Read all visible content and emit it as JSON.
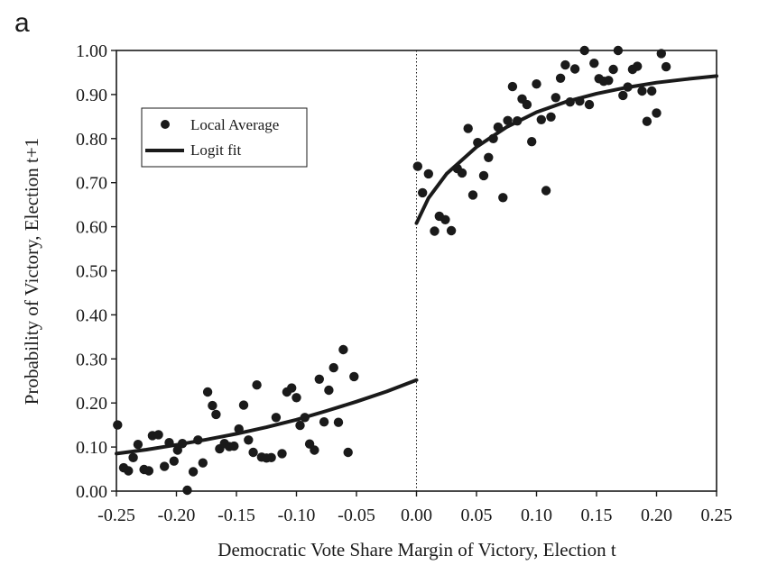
{
  "panel_label": "a",
  "chart_data": {
    "type": "scatter",
    "xlabel": "Democratic Vote Share Margin of Victory, Election t",
    "ylabel": "Probability of  Victory, Election t+1",
    "xlim": [
      -0.25,
      0.25
    ],
    "ylim": [
      0.0,
      1.0
    ],
    "x_ticks": [
      "-0.25",
      "-0.20",
      "-0.15",
      "-0.10",
      "-0.05",
      "0.00",
      "0.05",
      "0.10",
      "0.15",
      "0.20",
      "0.25"
    ],
    "y_ticks": [
      "0.00",
      "0.10",
      "0.20",
      "0.30",
      "0.40",
      "0.50",
      "0.60",
      "0.70",
      "0.80",
      "0.90",
      "1.00"
    ],
    "grid": false,
    "threshold_line": {
      "x": 0.0,
      "style": "dotted"
    },
    "legend": {
      "placement": "top-left",
      "entries": [
        {
          "label": "Local Average",
          "marker": "dot"
        },
        {
          "label": "Logit fit",
          "marker": "line"
        }
      ]
    },
    "series": [
      {
        "name": "Local Average",
        "kind": "points",
        "color": "#1a1a1a",
        "points": [
          [
            -0.249,
            0.15
          ],
          [
            -0.244,
            0.053
          ],
          [
            -0.24,
            0.046
          ],
          [
            -0.236,
            0.076
          ],
          [
            -0.232,
            0.106
          ],
          [
            -0.227,
            0.049
          ],
          [
            -0.223,
            0.046
          ],
          [
            -0.22,
            0.126
          ],
          [
            -0.215,
            0.128
          ],
          [
            -0.21,
            0.056
          ],
          [
            -0.206,
            0.11
          ],
          [
            -0.202,
            0.068
          ],
          [
            -0.199,
            0.093
          ],
          [
            -0.195,
            0.108
          ],
          [
            -0.191,
            0.002
          ],
          [
            -0.186,
            0.044
          ],
          [
            -0.182,
            0.116
          ],
          [
            -0.178,
            0.064
          ],
          [
            -0.174,
            0.225
          ],
          [
            -0.17,
            0.194
          ],
          [
            -0.167,
            0.174
          ],
          [
            -0.164,
            0.096
          ],
          [
            -0.16,
            0.108
          ],
          [
            -0.156,
            0.101
          ],
          [
            -0.152,
            0.102
          ],
          [
            -0.148,
            0.141
          ],
          [
            -0.144,
            0.195
          ],
          [
            -0.14,
            0.116
          ],
          [
            -0.136,
            0.088
          ],
          [
            -0.133,
            0.241
          ],
          [
            -0.129,
            0.077
          ],
          [
            -0.125,
            0.075
          ],
          [
            -0.121,
            0.076
          ],
          [
            -0.117,
            0.167
          ],
          [
            -0.112,
            0.085
          ],
          [
            -0.108,
            0.225
          ],
          [
            -0.104,
            0.234
          ],
          [
            -0.1,
            0.212
          ],
          [
            -0.097,
            0.149
          ],
          [
            -0.093,
            0.167
          ],
          [
            -0.089,
            0.107
          ],
          [
            -0.085,
            0.093
          ],
          [
            -0.081,
            0.254
          ],
          [
            -0.077,
            0.157
          ],
          [
            -0.073,
            0.229
          ],
          [
            -0.069,
            0.28
          ],
          [
            -0.065,
            0.156
          ],
          [
            -0.061,
            0.321
          ],
          [
            -0.057,
            0.088
          ],
          [
            -0.052,
            0.26
          ],
          [
            0.001,
            0.737
          ],
          [
            0.005,
            0.677
          ],
          [
            0.01,
            0.72
          ],
          [
            0.015,
            0.59
          ],
          [
            0.019,
            0.624
          ],
          [
            0.024,
            0.616
          ],
          [
            0.029,
            0.591
          ],
          [
            0.034,
            0.732
          ],
          [
            0.038,
            0.722
          ],
          [
            0.043,
            0.823
          ],
          [
            0.047,
            0.672
          ],
          [
            0.051,
            0.791
          ],
          [
            0.056,
            0.716
          ],
          [
            0.06,
            0.757
          ],
          [
            0.064,
            0.8
          ],
          [
            0.068,
            0.826
          ],
          [
            0.072,
            0.666
          ],
          [
            0.076,
            0.841
          ],
          [
            0.08,
            0.918
          ],
          [
            0.084,
            0.84
          ],
          [
            0.088,
            0.89
          ],
          [
            0.092,
            0.877
          ],
          [
            0.096,
            0.793
          ],
          [
            0.1,
            0.924
          ],
          [
            0.104,
            0.843
          ],
          [
            0.108,
            0.682
          ],
          [
            0.112,
            0.849
          ],
          [
            0.116,
            0.893
          ],
          [
            0.12,
            0.937
          ],
          [
            0.124,
            0.967
          ],
          [
            0.128,
            0.883
          ],
          [
            0.132,
            0.958
          ],
          [
            0.136,
            0.885
          ],
          [
            0.14,
            1.0
          ],
          [
            0.144,
            0.877
          ],
          [
            0.148,
            0.971
          ],
          [
            0.152,
            0.936
          ],
          [
            0.156,
            0.93
          ],
          [
            0.16,
            0.932
          ],
          [
            0.164,
            0.957
          ],
          [
            0.168,
            1.0
          ],
          [
            0.172,
            0.898
          ],
          [
            0.176,
            0.917
          ],
          [
            0.18,
            0.957
          ],
          [
            0.184,
            0.964
          ],
          [
            0.188,
            0.908
          ],
          [
            0.192,
            0.839
          ],
          [
            0.196,
            0.908
          ],
          [
            0.2,
            0.858
          ],
          [
            0.204,
            0.993
          ],
          [
            0.208,
            0.963
          ]
        ]
      },
      {
        "name": "Logit fit",
        "kind": "line",
        "color": "#1a1a1a",
        "segments": [
          [
            [
              -0.25,
              0.085
            ],
            [
              -0.225,
              0.094
            ],
            [
              -0.2,
              0.105
            ],
            [
              -0.175,
              0.117
            ],
            [
              -0.15,
              0.13
            ],
            [
              -0.125,
              0.145
            ],
            [
              -0.1,
              0.162
            ],
            [
              -0.075,
              0.182
            ],
            [
              -0.05,
              0.203
            ],
            [
              -0.025,
              0.226
            ],
            [
              0.0,
              0.252
            ]
          ],
          [
            [
              0.0,
              0.608
            ],
            [
              0.01,
              0.665
            ],
            [
              0.025,
              0.72
            ],
            [
              0.05,
              0.781
            ],
            [
              0.075,
              0.826
            ],
            [
              0.1,
              0.86
            ],
            [
              0.125,
              0.884
            ],
            [
              0.15,
              0.902
            ],
            [
              0.175,
              0.916
            ],
            [
              0.2,
              0.927
            ],
            [
              0.225,
              0.935
            ],
            [
              0.25,
              0.942
            ]
          ]
        ]
      }
    ]
  }
}
